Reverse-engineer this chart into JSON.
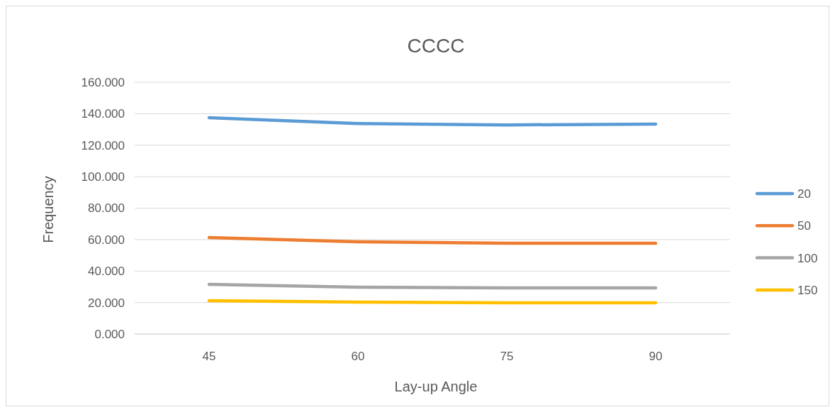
{
  "chart_data": {
    "type": "line",
    "title": "CCCC",
    "xlabel": "Lay-up Angle",
    "ylabel": "Frequency",
    "categories": [
      "45",
      "60",
      "75",
      "90"
    ],
    "series": [
      {
        "name": "20",
        "color": "#5b9bd5",
        "values": [
          137.5,
          133.8,
          132.9,
          133.4
        ]
      },
      {
        "name": "50",
        "color": "#ed7d31",
        "values": [
          61.3,
          58.6,
          57.7,
          57.7
        ]
      },
      {
        "name": "100",
        "color": "#a5a5a5",
        "values": [
          31.5,
          29.7,
          29.3,
          29.3
        ]
      },
      {
        "name": "150",
        "color": "#ffc000",
        "values": [
          21.2,
          20.3,
          19.8,
          19.8
        ]
      }
    ],
    "ylim": [
      0,
      160
    ],
    "yticks": [
      {
        "value": 0,
        "label": "0.000"
      },
      {
        "value": 20,
        "label": "20.000"
      },
      {
        "value": 40,
        "label": "40.000"
      },
      {
        "value": 60,
        "label": "60.000"
      },
      {
        "value": 80,
        "label": "80.000"
      },
      {
        "value": 100,
        "label": "100.000"
      },
      {
        "value": 120,
        "label": "120.000"
      },
      {
        "value": 140,
        "label": "140.000"
      },
      {
        "value": 160,
        "label": "160.000"
      }
    ],
    "grid": "y",
    "legend": "right",
    "marker": "none",
    "line_style": "solid"
  }
}
